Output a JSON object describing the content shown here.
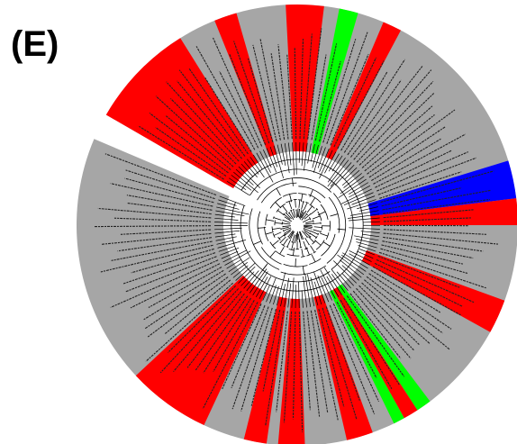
{
  "panel_label": "(E)"
}
